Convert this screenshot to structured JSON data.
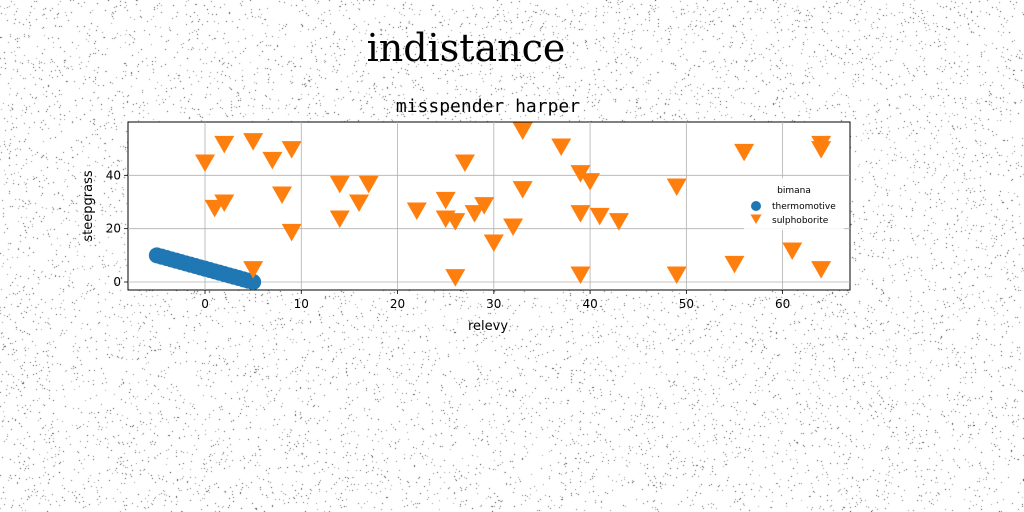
{
  "figure": {
    "suptitle": "indistance"
  },
  "chart_data": {
    "type": "scatter",
    "title": "misspender harper",
    "xlabel": "relevy",
    "ylabel": "steepgrass",
    "xlim": [
      -8,
      67
    ],
    "ylim": [
      -3,
      60
    ],
    "xticks": [
      0,
      10,
      20,
      30,
      40,
      50,
      60
    ],
    "yticks": [
      0,
      20,
      40
    ],
    "grid": true,
    "legend": {
      "title": "bimana",
      "placement": "center-right"
    },
    "series": [
      {
        "name": "thermomotive",
        "marker": "circle",
        "color": "#1f77b4",
        "points": [
          {
            "x": -5,
            "y": 10
          },
          {
            "x": -4.5,
            "y": 9.5
          },
          {
            "x": -4,
            "y": 9
          },
          {
            "x": -3.5,
            "y": 8.5
          },
          {
            "x": -3,
            "y": 8
          },
          {
            "x": -2.5,
            "y": 7.5
          },
          {
            "x": -2,
            "y": 7
          },
          {
            "x": -1.5,
            "y": 6.5
          },
          {
            "x": -1,
            "y": 6
          },
          {
            "x": -0.5,
            "y": 5.5
          },
          {
            "x": 0,
            "y": 5
          },
          {
            "x": 0.5,
            "y": 4.5
          },
          {
            "x": 1,
            "y": 4
          },
          {
            "x": 1.5,
            "y": 3.5
          },
          {
            "x": 2,
            "y": 3
          },
          {
            "x": 2.5,
            "y": 2.5
          },
          {
            "x": 3,
            "y": 2
          },
          {
            "x": 3.5,
            "y": 1.5
          },
          {
            "x": 4,
            "y": 1
          },
          {
            "x": 4.5,
            "y": 0.5
          },
          {
            "x": 5,
            "y": 0
          }
        ]
      },
      {
        "name": "sulphoborite",
        "marker": "triangle-down",
        "color": "#ff7f0e",
        "points": [
          {
            "x": 0,
            "y": 45
          },
          {
            "x": 2,
            "y": 52
          },
          {
            "x": 5,
            "y": 53
          },
          {
            "x": 7,
            "y": 46
          },
          {
            "x": 9,
            "y": 50
          },
          {
            "x": 1,
            "y": 28
          },
          {
            "x": 2,
            "y": 30
          },
          {
            "x": 8,
            "y": 33
          },
          {
            "x": 9,
            "y": 19
          },
          {
            "x": 5,
            "y": 5
          },
          {
            "x": 14,
            "y": 37
          },
          {
            "x": 14,
            "y": 24
          },
          {
            "x": 16,
            "y": 30
          },
          {
            "x": 17,
            "y": 37
          },
          {
            "x": 22,
            "y": 27
          },
          {
            "x": 25,
            "y": 31
          },
          {
            "x": 25,
            "y": 24
          },
          {
            "x": 26,
            "y": 23
          },
          {
            "x": 26,
            "y": 2
          },
          {
            "x": 27,
            "y": 45
          },
          {
            "x": 28,
            "y": 26
          },
          {
            "x": 29,
            "y": 29
          },
          {
            "x": 30,
            "y": 15
          },
          {
            "x": 32,
            "y": 21
          },
          {
            "x": 33,
            "y": 57
          },
          {
            "x": 33,
            "y": 35
          },
          {
            "x": 37,
            "y": 51
          },
          {
            "x": 39,
            "y": 41
          },
          {
            "x": 40,
            "y": 38
          },
          {
            "x": 39,
            "y": 26
          },
          {
            "x": 41,
            "y": 25
          },
          {
            "x": 43,
            "y": 23
          },
          {
            "x": 39,
            "y": 3
          },
          {
            "x": 49,
            "y": 36
          },
          {
            "x": 49,
            "y": 3
          },
          {
            "x": 55,
            "y": 7
          },
          {
            "x": 56,
            "y": 49
          },
          {
            "x": 61,
            "y": 12
          },
          {
            "x": 64,
            "y": 52
          },
          {
            "x": 64,
            "y": 50
          },
          {
            "x": 64,
            "y": 5
          }
        ]
      }
    ]
  }
}
